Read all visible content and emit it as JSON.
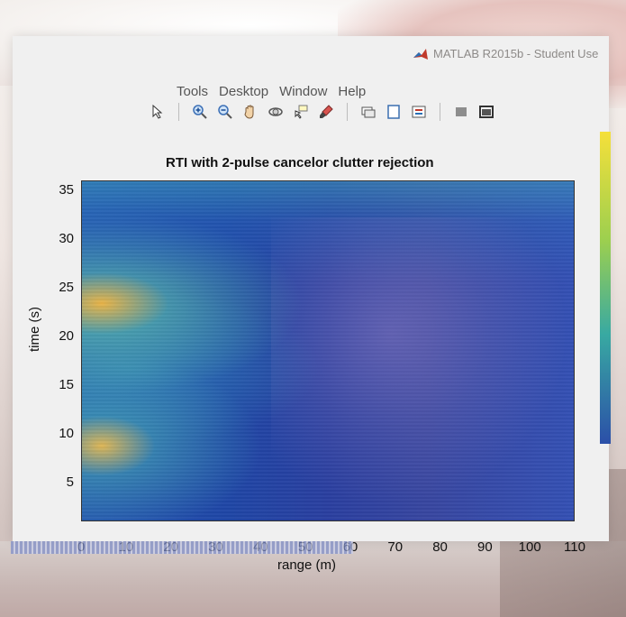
{
  "window": {
    "app_title": "MATLAB R2015b - Student Use"
  },
  "menu": {
    "items": [
      "Tools",
      "Desktop",
      "Window",
      "Help"
    ]
  },
  "toolbar": {
    "icons": [
      "pointer-arrow-icon",
      "zoom-in-icon",
      "zoom-out-icon",
      "pan-hand-icon",
      "rotate-3d-icon",
      "data-cursor-icon",
      "brush-icon",
      "link-plot-icon",
      "hide-plot-tools-icon",
      "show-plot-tools-icon",
      "gray-box-icon",
      "dock-icon"
    ]
  },
  "plot": {
    "title": "RTI with 2-pulse cancelor clutter rejection",
    "ylabel": "time (s)",
    "xlabel": "range (m)"
  },
  "chart_data": {
    "type": "heatmap",
    "title": "RTI with 2-pulse cancelor clutter rejection",
    "xlabel": "range (m)",
    "ylabel": "time (s)",
    "xlim": [
      0,
      110
    ],
    "ylim": [
      1,
      36
    ],
    "x_ticks": [
      "0",
      "10",
      "20",
      "30",
      "40",
      "50",
      "60",
      "70",
      "80",
      "90",
      "100",
      "110"
    ],
    "y_ticks": [
      "35",
      "30",
      "25",
      "20",
      "15",
      "10",
      "5"
    ],
    "colormap": "parula",
    "colors": {
      "low": "#1f46a6",
      "mid": "#38a9a2",
      "high": "#f5e03a"
    }
  }
}
